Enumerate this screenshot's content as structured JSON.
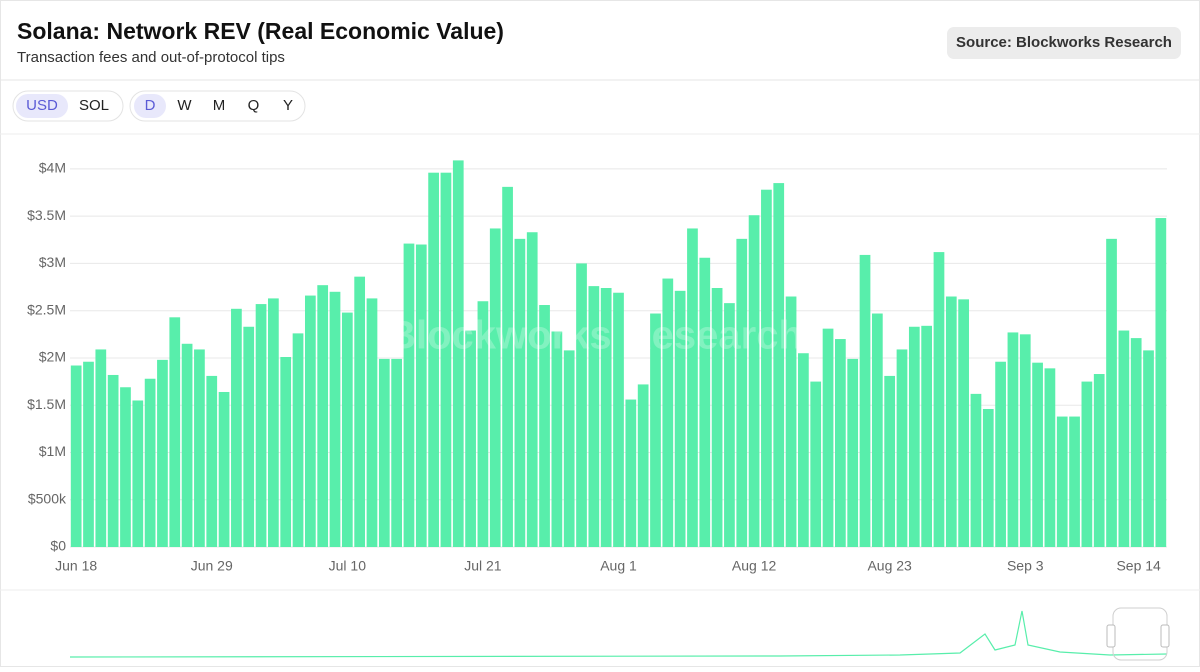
{
  "header": {
    "title": "Solana: Network REV (Real Economic Value)",
    "subtitle": "Transaction fees and out-of-protocol tips",
    "source": "Source: Blockworks Research"
  },
  "controls": {
    "units": [
      "USD",
      "SOL"
    ],
    "periods": [
      "D",
      "W",
      "M",
      "Q",
      "Y"
    ]
  },
  "watermark": "Blockworks Research",
  "chart_data": {
    "type": "bar",
    "color": "#58eeab",
    "grid": true,
    "ylim": [
      0,
      4200000
    ],
    "yticks": [
      {
        "value": 0,
        "label": "$0"
      },
      {
        "value": 500000,
        "label": "$500k"
      },
      {
        "value": 1000000,
        "label": "$1M"
      },
      {
        "value": 1500000,
        "label": "$1.5M"
      },
      {
        "value": 2000000,
        "label": "$2M"
      },
      {
        "value": 2500000,
        "label": "$2.5M"
      },
      {
        "value": 3000000,
        "label": "$3M"
      },
      {
        "value": 3500000,
        "label": "$3.5M"
      },
      {
        "value": 4000000,
        "label": "$4M"
      }
    ],
    "categories": [
      "Jun 18",
      null,
      null,
      null,
      null,
      null,
      null,
      null,
      null,
      null,
      null,
      "Jun 29",
      null,
      null,
      null,
      null,
      null,
      null,
      null,
      null,
      null,
      null,
      "Jul 10",
      null,
      null,
      null,
      null,
      null,
      null,
      null,
      null,
      null,
      null,
      "Jul 21",
      null,
      null,
      null,
      null,
      null,
      null,
      null,
      null,
      null,
      null,
      "Aug 1",
      null,
      null,
      null,
      null,
      null,
      null,
      null,
      null,
      null,
      null,
      "Aug 12",
      null,
      null,
      null,
      null,
      null,
      null,
      null,
      null,
      null,
      null,
      "Aug 23",
      null,
      null,
      null,
      null,
      null,
      null,
      null,
      null,
      null,
      null,
      "Sep 3",
      null,
      null,
      null,
      null,
      null,
      null,
      null,
      null,
      null,
      null,
      "Sep 14"
    ],
    "values": [
      1920000,
      1960000,
      2090000,
      1820000,
      1690000,
      1550000,
      1780000,
      1980000,
      2430000,
      2150000,
      2090000,
      1810000,
      1640000,
      2520000,
      2330000,
      2570000,
      2630000,
      2010000,
      2260000,
      2660000,
      2770000,
      2700000,
      2480000,
      2860000,
      2630000,
      1990000,
      1990000,
      3210000,
      3200000,
      3960000,
      3960000,
      4090000,
      2290000,
      2600000,
      3370000,
      3810000,
      3260000,
      3330000,
      2560000,
      2280000,
      2080000,
      3000000,
      2760000,
      2740000,
      2690000,
      1560000,
      1720000,
      2470000,
      2840000,
      2710000,
      3370000,
      3060000,
      2740000,
      2580000,
      3260000,
      3510000,
      3780000,
      3850000,
      2650000,
      2050000,
      1750000,
      2310000,
      2200000,
      1990000,
      3090000,
      2470000,
      1810000,
      2090000,
      2330000,
      2340000,
      3120000,
      2650000,
      2620000,
      1620000,
      1460000,
      1960000,
      2270000,
      2250000,
      1950000,
      1890000,
      1380000,
      1380000,
      1750000,
      1830000,
      3260000,
      2290000,
      2210000,
      2080000,
      3480000
    ]
  }
}
